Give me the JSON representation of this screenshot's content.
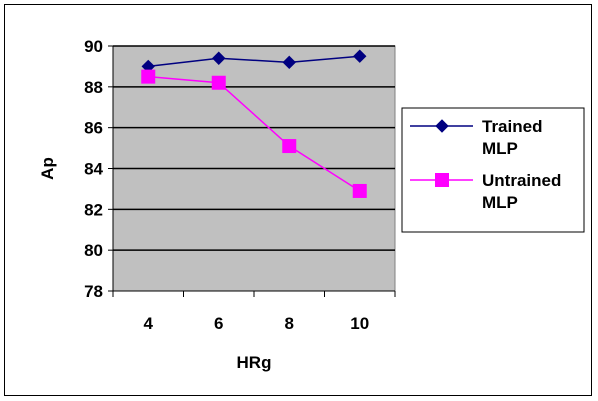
{
  "chart_data": {
    "type": "line",
    "x": [
      4,
      6,
      8,
      10
    ],
    "categories": [
      "4",
      "6",
      "8",
      "10"
    ],
    "series": [
      {
        "name": "Trained MLP",
        "name_lines": [
          "Trained",
          "MLP"
        ],
        "values": [
          89.0,
          89.4,
          89.2,
          89.5
        ],
        "color": "#000080",
        "marker": "diamond"
      },
      {
        "name": "Untrained MLP",
        "name_lines": [
          "Untrained",
          "MLP"
        ],
        "values": [
          88.5,
          88.2,
          85.1,
          82.9
        ],
        "color": "#FF00FF",
        "marker": "square"
      }
    ],
    "xlabel": "HRg",
    "ylabel": "Ap",
    "ylim": [
      78,
      90
    ],
    "yticks": [
      "78",
      "80",
      "82",
      "84",
      "86",
      "88",
      "90"
    ],
    "grid": true,
    "plot_background": "#C0C0C0",
    "legend_position": "right"
  }
}
